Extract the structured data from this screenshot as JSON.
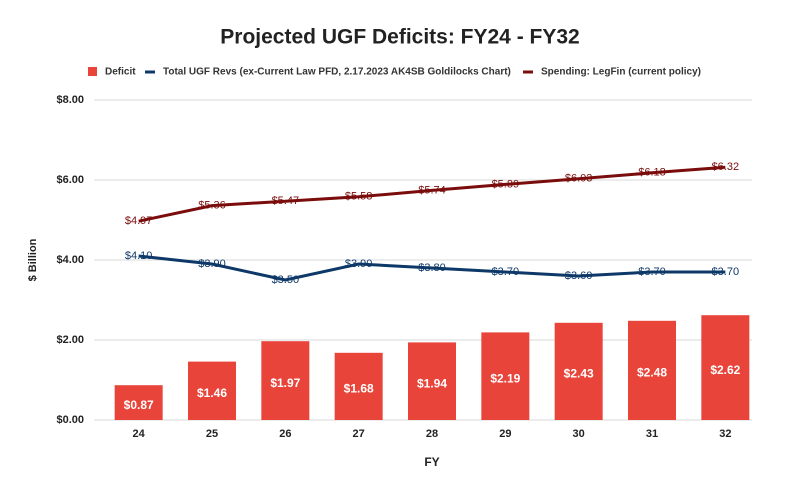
{
  "chart_data": {
    "type": "combo",
    "title": "Projected UGF Deficits: FY24 - FY32",
    "xlabel": "FY",
    "ylabel": "$ Billion",
    "categories": [
      "24",
      "25",
      "26",
      "27",
      "28",
      "29",
      "30",
      "31",
      "32"
    ],
    "series": [
      {
        "name": "Deficit",
        "type": "bar",
        "color": "#e8443a",
        "values": [
          0.87,
          1.46,
          1.97,
          1.68,
          1.94,
          2.19,
          2.43,
          2.48,
          2.62
        ],
        "value_labels": [
          "$0.87",
          "$1.46",
          "$1.97",
          "$1.68",
          "$1.94",
          "$2.19",
          "$2.43",
          "$2.48",
          "$2.62"
        ]
      },
      {
        "name": "Total UGF Revs (ex-Current Law PFD, 2.17.2023 AK4SB Goldilocks Chart)",
        "type": "line",
        "color": "#0d3868",
        "values": [
          4.1,
          3.9,
          3.5,
          3.9,
          3.8,
          3.7,
          3.6,
          3.7,
          3.7
        ],
        "value_labels": [
          "$4.10",
          "$3.90",
          "$3.50",
          "$3.90",
          "$3.80",
          "$3.70",
          "$3.60",
          "$3.70",
          "$3.70"
        ]
      },
      {
        "name": "Spending: LegFin (current policy)",
        "type": "line",
        "color": "#7a0c0c",
        "values": [
          4.97,
          5.36,
          5.47,
          5.58,
          5.74,
          5.89,
          6.03,
          6.18,
          6.32
        ],
        "value_labels": [
          "$4.97",
          "$5.36",
          "$5.47",
          "$5.58",
          "$5.74",
          "$5.89",
          "$6.03",
          "$6.18",
          "$6.32"
        ]
      }
    ],
    "ylim": [
      0,
      8
    ],
    "yticks": [
      {
        "value": 0,
        "label": "$0.00"
      },
      {
        "value": 2,
        "label": "$2.00"
      },
      {
        "value": 4,
        "label": "$4.00"
      },
      {
        "value": 6,
        "label": "$6.00"
      },
      {
        "value": 8,
        "label": "$8.00"
      }
    ],
    "grid": true
  }
}
